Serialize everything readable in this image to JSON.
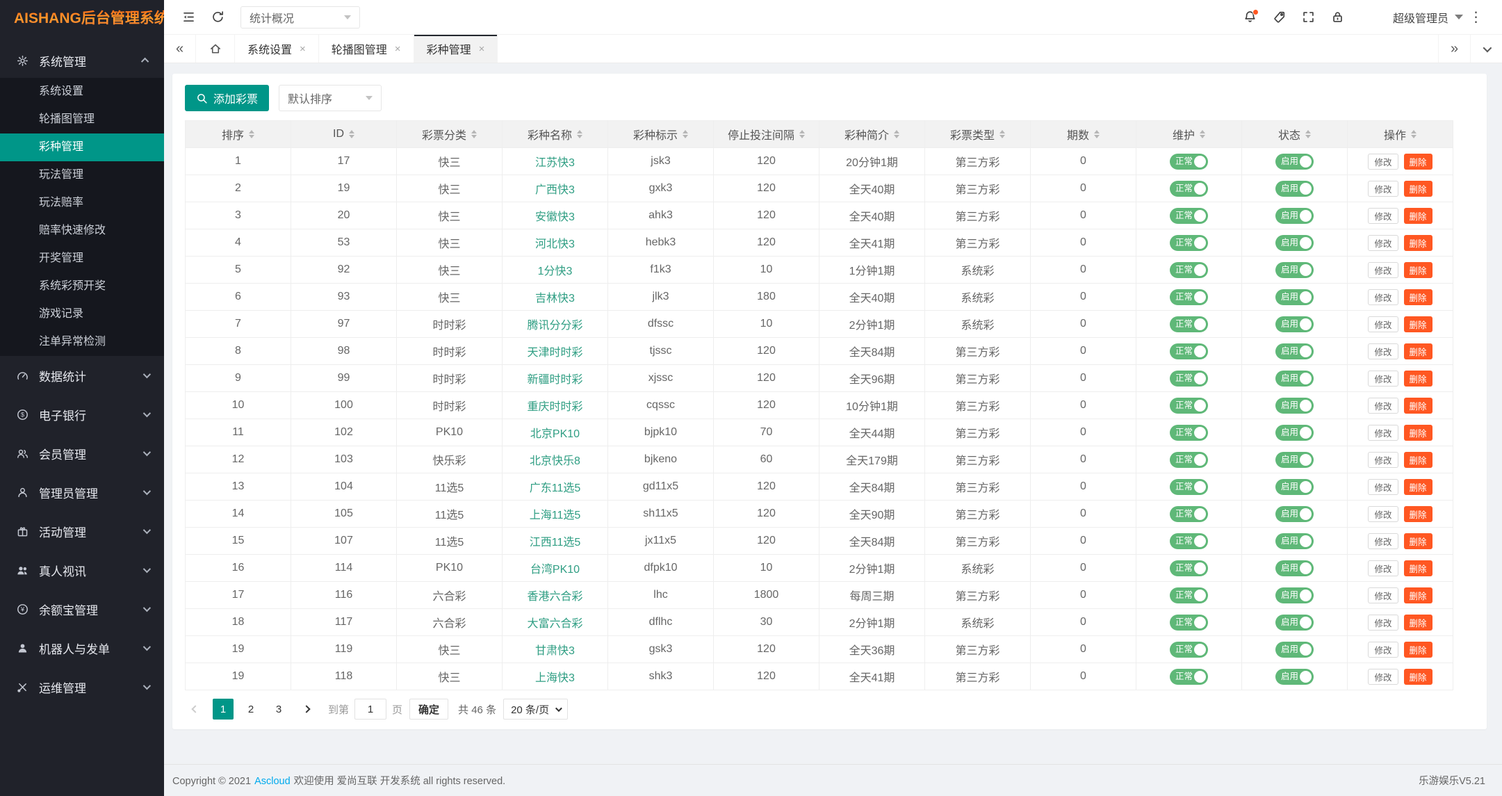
{
  "app_title": "AISHANG后台管理系统",
  "topbar": {
    "left_icons": [
      {
        "name": "menu-collapse-icon"
      },
      {
        "name": "refresh-icon"
      }
    ],
    "nav_select": "统计概况",
    "right_icons": [
      {
        "name": "notification-bell-icon",
        "badge": true
      },
      {
        "name": "tag-icon"
      },
      {
        "name": "fullscreen-icon"
      },
      {
        "name": "lock-icon"
      }
    ],
    "user": "超级管理员"
  },
  "tabs": [
    {
      "name": "tab-system-settings",
      "label": "系统设置"
    },
    {
      "name": "tab-banner-management",
      "label": "轮播图管理"
    },
    {
      "name": "tab-lottery-management",
      "label": "彩种管理",
      "active": true
    }
  ],
  "sidebar": {
    "groups": [
      {
        "name": "system",
        "label": "系统管理",
        "icon": "gear-icon",
        "expanded": true,
        "items": [
          {
            "name": "system-settings",
            "label": "系统设置"
          },
          {
            "name": "banner-management",
            "label": "轮播图管理"
          },
          {
            "name": "lottery-management",
            "label": "彩种管理",
            "active": true
          },
          {
            "name": "play-management",
            "label": "玩法管理"
          },
          {
            "name": "play-odds",
            "label": "玩法赔率"
          },
          {
            "name": "odds-quick-edit",
            "label": "赔率快速修改"
          },
          {
            "name": "draw-management",
            "label": "开奖管理"
          },
          {
            "name": "system-lottery-predraw",
            "label": "系统彩预开奖"
          },
          {
            "name": "game-records",
            "label": "游戏记录"
          },
          {
            "name": "bet-anomaly-check",
            "label": "注单异常检测"
          }
        ]
      },
      {
        "name": "data-statistics",
        "label": "数据统计",
        "icon": "gauge-icon"
      },
      {
        "name": "e-banking",
        "label": "电子银行",
        "icon": "dollar-circle-icon"
      },
      {
        "name": "member-management",
        "label": "会员管理",
        "icon": "members-icon"
      },
      {
        "name": "admin-management",
        "label": "管理员管理",
        "icon": "person-icon"
      },
      {
        "name": "activity-management",
        "label": "活动管理",
        "icon": "gift-icon"
      },
      {
        "name": "live-video",
        "label": "真人视讯",
        "icon": "people-solid-icon"
      },
      {
        "name": "yuebao-management",
        "label": "余额宝管理",
        "icon": "yuan-circle-icon"
      },
      {
        "name": "robot-and-orders",
        "label": "机器人与发单",
        "icon": "person-solid-icon"
      },
      {
        "name": "ops-management",
        "label": "运维管理",
        "icon": "tools-icon"
      }
    ]
  },
  "toolbar": {
    "add_button": "添加彩票",
    "sort_select": "默认排序"
  },
  "table": {
    "columns": [
      "排序",
      "ID",
      "彩票分类",
      "彩种名称",
      "彩种标示",
      "停止投注间隔",
      "彩种简介",
      "彩票类型",
      "期数",
      "维护",
      "状态",
      "操作"
    ],
    "maintain_on": "正常",
    "status_on": "启用",
    "edit_label": "修改",
    "delete_label": "删除",
    "rows": [
      [
        "1",
        "17",
        "快三",
        "江苏快3",
        "jsk3",
        "120",
        "20分钟1期",
        "第三方彩",
        "0"
      ],
      [
        "2",
        "19",
        "快三",
        "广西快3",
        "gxk3",
        "120",
        "全天40期",
        "第三方彩",
        "0"
      ],
      [
        "3",
        "20",
        "快三",
        "安徽快3",
        "ahk3",
        "120",
        "全天40期",
        "第三方彩",
        "0"
      ],
      [
        "4",
        "53",
        "快三",
        "河北快3",
        "hebk3",
        "120",
        "全天41期",
        "第三方彩",
        "0"
      ],
      [
        "5",
        "92",
        "快三",
        "1分快3",
        "f1k3",
        "10",
        "1分钟1期",
        "系统彩",
        "0"
      ],
      [
        "6",
        "93",
        "快三",
        "吉林快3",
        "jlk3",
        "180",
        "全天40期",
        "系统彩",
        "0"
      ],
      [
        "7",
        "97",
        "时时彩",
        "腾讯分分彩",
        "dfssc",
        "10",
        "2分钟1期",
        "系统彩",
        "0"
      ],
      [
        "8",
        "98",
        "时时彩",
        "天津时时彩",
        "tjssc",
        "120",
        "全天84期",
        "第三方彩",
        "0"
      ],
      [
        "9",
        "99",
        "时时彩",
        "新疆时时彩",
        "xjssc",
        "120",
        "全天96期",
        "第三方彩",
        "0"
      ],
      [
        "10",
        "100",
        "时时彩",
        "重庆时时彩",
        "cqssc",
        "120",
        "10分钟1期",
        "第三方彩",
        "0"
      ],
      [
        "11",
        "102",
        "PK10",
        "北京PK10",
        "bjpk10",
        "70",
        "全天44期",
        "第三方彩",
        "0"
      ],
      [
        "12",
        "103",
        "快乐彩",
        "北京快乐8",
        "bjkeno",
        "60",
        "全天179期",
        "第三方彩",
        "0"
      ],
      [
        "13",
        "104",
        "11选5",
        "广东11选5",
        "gd11x5",
        "120",
        "全天84期",
        "第三方彩",
        "0"
      ],
      [
        "14",
        "105",
        "11选5",
        "上海11选5",
        "sh11x5",
        "120",
        "全天90期",
        "第三方彩",
        "0"
      ],
      [
        "15",
        "107",
        "11选5",
        "江西11选5",
        "jx11x5",
        "120",
        "全天84期",
        "第三方彩",
        "0"
      ],
      [
        "16",
        "114",
        "PK10",
        "台湾PK10",
        "dfpk10",
        "10",
        "2分钟1期",
        "系统彩",
        "0"
      ],
      [
        "17",
        "116",
        "六合彩",
        "香港六合彩",
        "lhc",
        "1800",
        "每周三期",
        "第三方彩",
        "0"
      ],
      [
        "18",
        "117",
        "六合彩",
        "大富六合彩",
        "dflhc",
        "30",
        "2分钟1期",
        "系统彩",
        "0"
      ],
      [
        "19",
        "119",
        "快三",
        "甘肃快3",
        "gsk3",
        "120",
        "全天36期",
        "第三方彩",
        "0"
      ],
      [
        "19",
        "118",
        "快三",
        "上海快3",
        "shk3",
        "120",
        "全天41期",
        "第三方彩",
        "0"
      ]
    ]
  },
  "pagination": {
    "pages": [
      "1",
      "2",
      "3"
    ],
    "active_page": "1",
    "goto_label": "到第",
    "goto_value": "1",
    "page_unit": "页",
    "confirm_label": "确定",
    "total_label": "共 46 条",
    "per_page_label": "20 条/页"
  },
  "footer": {
    "copyright_prefix": "Copyright © 2021",
    "link_label": "Ascloud",
    "copyright_suffix": "欢迎使用 爱尚互联 开发系统 all rights reserved.",
    "version": "乐游娱乐V5.21"
  },
  "colors": {
    "accent_teal": "#009688",
    "toggle_green": "#5FB878",
    "danger_orange": "#FF5722",
    "lottery_link_green": "#2f9e83",
    "footer_link_blue": "#01AAED",
    "notification_dot": "#FF5722",
    "sidebar_bg": "#20222A"
  }
}
